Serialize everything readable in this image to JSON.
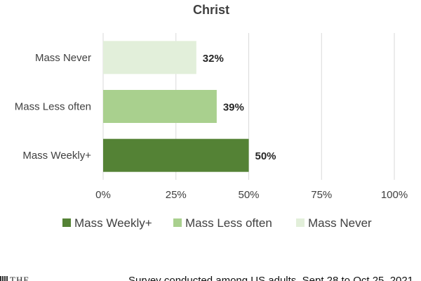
{
  "chart_data": {
    "type": "bar",
    "orientation": "horizontal",
    "title": "Christ",
    "categories": [
      "Mass Never",
      "Mass Less often",
      "Mass Weekly+"
    ],
    "values": [
      32,
      39,
      50
    ],
    "data_labels": [
      "32%",
      "39%",
      "50%"
    ],
    "colors": [
      "#e2efda",
      "#a9d08e",
      "#548235"
    ],
    "xlim": [
      0,
      100
    ],
    "x_ticks": [
      "0%",
      "25%",
      "50%",
      "75%",
      "100%"
    ],
    "grid": true,
    "legend": {
      "placement": "bottom",
      "entries": [
        {
          "label": "Mass Weekly+",
          "color": "#548235"
        },
        {
          "label": "Mass Less often",
          "color": "#a9d08e"
        },
        {
          "label": "Mass Never",
          "color": "#e2efda"
        }
      ]
    }
  },
  "footer": {
    "logo_text": "THE",
    "note": "Survey conducted among US adults, Sept 28 to Oct 25, 2021"
  }
}
